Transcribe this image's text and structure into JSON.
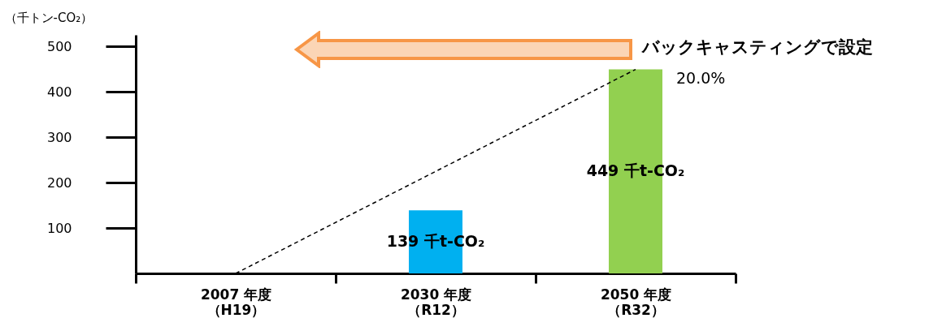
{
  "chart_data": {
    "type": "bar",
    "ylabel": "（千トン-CO₂）",
    "categories": [
      "2007 年度（H19）",
      "2030 年度（R12）",
      "2050 年度（R32）"
    ],
    "ylim": [
      0,
      525
    ],
    "yticks": [
      100,
      200,
      300,
      400,
      500
    ],
    "series": [
      {
        "values": [
          null,
          139,
          449
        ],
        "colors": [
          "#00b0f0",
          "#00b0f0",
          "#92d050"
        ],
        "value_labels": [
          null,
          "139 千t-CO₂",
          "449 千t-CO₂"
        ]
      },
      {
        "type": "line",
        "x": [
          "2007 年度（H19）",
          "2050 年度（R32）"
        ],
        "values": [
          0,
          449
        ],
        "color": "#000000",
        "line_style": "dashed",
        "marker": "none"
      }
    ],
    "annotations": [
      {
        "text": "20.0%",
        "x": "2050 年度（R32）",
        "y": 449
      },
      "バックキャスティングで設定"
    ]
  }
}
